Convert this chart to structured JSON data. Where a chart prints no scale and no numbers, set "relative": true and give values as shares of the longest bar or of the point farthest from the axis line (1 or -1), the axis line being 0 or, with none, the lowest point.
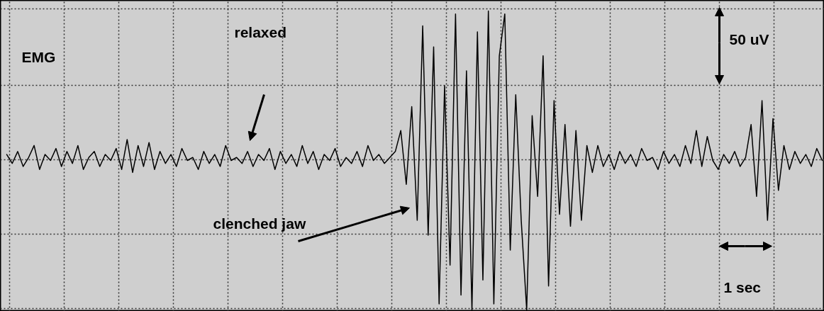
{
  "chart_data": {
    "type": "line",
    "relative": true,
    "grid": true,
    "categories": [
      null,
      null,
      null,
      null,
      null,
      null,
      null,
      null,
      null,
      null,
      null,
      null,
      null,
      null,
      null,
      null,
      null,
      null,
      null,
      null,
      null,
      null,
      null,
      null,
      null,
      null,
      null,
      null,
      null,
      null,
      null,
      null,
      null,
      null,
      null,
      null,
      null,
      null,
      null,
      null,
      null,
      null,
      null,
      null,
      null,
      null,
      null,
      null,
      null,
      null,
      null,
      null,
      null,
      null,
      null,
      null,
      null,
      null,
      null,
      null,
      null,
      null,
      null,
      null,
      null,
      null,
      null,
      null,
      null,
      null,
      null,
      null,
      null,
      null,
      null,
      null,
      null,
      null,
      null,
      null,
      null,
      null,
      null,
      null,
      null,
      null,
      null,
      null,
      null,
      null,
      null,
      null,
      null,
      null,
      null,
      null,
      null,
      null,
      null,
      null,
      null,
      null,
      null,
      null,
      null,
      null,
      null,
      null,
      null,
      null,
      null,
      null,
      null,
      null,
      null,
      null,
      null,
      null,
      null,
      null,
      null,
      null,
      null,
      null,
      null,
      null,
      null,
      null,
      null,
      null,
      null,
      null,
      null,
      null,
      null,
      null,
      null,
      null,
      null,
      null,
      null,
      null,
      null,
      null,
      null,
      null,
      null,
      null,
      null,
      null
    ],
    "series": [
      {
        "color": "#000000",
        "values": [
          0.52,
          0.49,
          0.53,
          0.48,
          0.51,
          0.55,
          0.47,
          0.52,
          0.5,
          0.54,
          0.48,
          0.53,
          0.49,
          0.55,
          0.47,
          0.51,
          0.53,
          0.48,
          0.52,
          0.5,
          0.54,
          0.47,
          0.57,
          0.46,
          0.55,
          0.48,
          0.56,
          0.47,
          0.53,
          0.49,
          0.52,
          0.48,
          0.54,
          0.5,
          0.51,
          0.47,
          0.53,
          0.49,
          0.52,
          0.48,
          0.55,
          0.5,
          0.51,
          0.49,
          0.53,
          0.48,
          0.52,
          0.5,
          0.54,
          0.47,
          0.53,
          0.49,
          0.52,
          0.48,
          0.55,
          0.49,
          0.53,
          0.47,
          0.52,
          0.5,
          0.54,
          0.48,
          0.51,
          0.49,
          0.53,
          0.48,
          0.55,
          0.5,
          0.52,
          0.49,
          0.51,
          0.53,
          0.6,
          0.42,
          0.68,
          0.3,
          0.95,
          0.25,
          0.88,
          0.02,
          0.75,
          0.15,
          0.99,
          0.05,
          0.8,
          0.0,
          0.93,
          0.1,
          1.0,
          0.02,
          0.85,
          0.99,
          0.2,
          0.72,
          0.3,
          0.0,
          0.65,
          0.38,
          0.85,
          0.08,
          0.7,
          0.32,
          0.62,
          0.28,
          0.6,
          0.3,
          0.55,
          0.46,
          0.55,
          0.48,
          0.52,
          0.47,
          0.53,
          0.49,
          0.52,
          0.48,
          0.54,
          0.5,
          0.51,
          0.47,
          0.53,
          0.49,
          0.52,
          0.48,
          0.55,
          0.49,
          0.6,
          0.48,
          0.58,
          0.5,
          0.47,
          0.52,
          0.49,
          0.53,
          0.48,
          0.51,
          0.62,
          0.38,
          0.7,
          0.3,
          0.64,
          0.4,
          0.55,
          0.47,
          0.53,
          0.49,
          0.52,
          0.48,
          0.54,
          0.5
        ]
      }
    ],
    "annotations": [
      "EMG",
      "relaxed",
      "clenched jaw",
      "50 uV",
      "1 sec"
    ]
  }
}
